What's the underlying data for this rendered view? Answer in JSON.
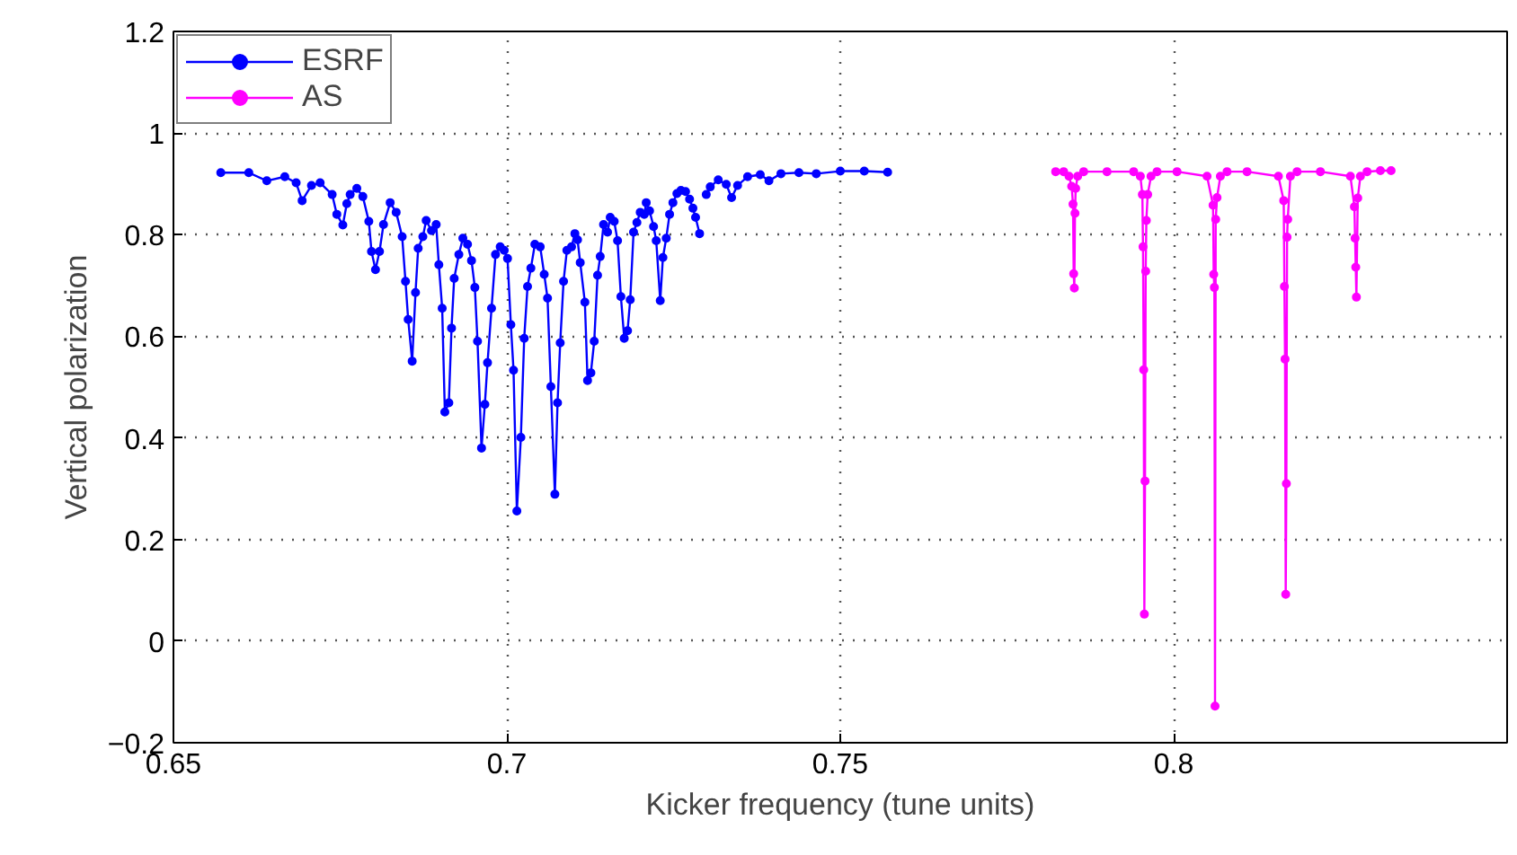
{
  "chart_data": {
    "type": "line",
    "xlabel": "Kicker frequency (tune units)",
    "ylabel": "Vertical polarization",
    "xlim": [
      0.65,
      0.85
    ],
    "ylim": [
      -0.2,
      1.2
    ],
    "xticks": [
      0.65,
      0.7,
      0.75,
      0.8
    ],
    "yticks": [
      {
        "value": -0.2,
        "label": "−0.2"
      },
      0,
      0.2,
      0.4,
      0.6,
      0.8,
      1,
      1.2
    ],
    "grid": true,
    "legend": "top left",
    "marker": "circle",
    "line_style": "solid",
    "series": [
      {
        "name": "ESRF",
        "color": "#0000ff",
        "x": [
          0.6571,
          0.6613,
          0.664,
          0.6667,
          0.6684,
          0.6693,
          0.6707,
          0.672,
          0.6738,
          0.6745,
          0.6754,
          0.676,
          0.6765,
          0.6775,
          0.6784,
          0.6793,
          0.6797,
          0.6803,
          0.6809,
          0.6815,
          0.6825,
          0.6834,
          0.6843,
          0.6848,
          0.6852,
          0.6858,
          0.6863,
          0.6867,
          0.6874,
          0.6879,
          0.6887,
          0.6894,
          0.6898,
          0.6903,
          0.6907,
          0.6913,
          0.6917,
          0.6921,
          0.6928,
          0.6934,
          0.6941,
          0.6947,
          0.6952,
          0.6956,
          0.6962,
          0.6967,
          0.6971,
          0.6977,
          0.6983,
          0.699,
          0.6996,
          0.7001,
          0.7006,
          0.701,
          0.7015,
          0.7021,
          0.7026,
          0.7031,
          0.7036,
          0.7042,
          0.705,
          0.7056,
          0.7061,
          0.7066,
          0.7072,
          0.7076,
          0.708,
          0.7085,
          0.709,
          0.7097,
          0.7102,
          0.7106,
          0.711,
          0.7117,
          0.7121,
          0.7126,
          0.7131,
          0.7136,
          0.714,
          0.7145,
          0.7151,
          0.7155,
          0.7161,
          0.7166,
          0.7171,
          0.7176,
          0.7181,
          0.7185,
          0.719,
          0.7195,
          0.72,
          0.7206,
          0.7209,
          0.7214,
          0.722,
          0.7224,
          0.723,
          0.7234,
          0.7239,
          0.7244,
          0.7249,
          0.7255,
          0.7261,
          0.7268,
          0.7274,
          0.7279,
          0.7283,
          0.7289,
          0.7294,
          0.7299,
          0.7305,
          0.7317,
          0.7329,
          0.7337,
          0.7346,
          0.7361,
          0.738,
          0.7393,
          0.7411,
          0.7438,
          0.7464,
          0.75,
          0.7536,
          0.7571
        ],
        "values": [
          0.922,
          0.922,
          0.906,
          0.914,
          0.902,
          0.867,
          0.897,
          0.902,
          0.879,
          0.84,
          0.819,
          0.861,
          0.879,
          0.891,
          0.875,
          0.826,
          0.767,
          0.731,
          0.767,
          0.82,
          0.863,
          0.844,
          0.796,
          0.708,
          0.633,
          0.551,
          0.686,
          0.773,
          0.796,
          0.828,
          0.808,
          0.82,
          0.741,
          0.655,
          0.451,
          0.469,
          0.616,
          0.714,
          0.761,
          0.793,
          0.781,
          0.749,
          0.696,
          0.59,
          0.38,
          0.466,
          0.548,
          0.655,
          0.761,
          0.776,
          0.769,
          0.753,
          0.623,
          0.533,
          0.256,
          0.401,
          0.596,
          0.698,
          0.734,
          0.781,
          0.776,
          0.722,
          0.675,
          0.501,
          0.289,
          0.469,
          0.587,
          0.708,
          0.769,
          0.776,
          0.802,
          0.79,
          0.745,
          0.667,
          0.513,
          0.528,
          0.59,
          0.72,
          0.757,
          0.82,
          0.805,
          0.834,
          0.826,
          0.788,
          0.678,
          0.596,
          0.611,
          0.672,
          0.805,
          0.824,
          0.844,
          0.84,
          0.863,
          0.847,
          0.816,
          0.788,
          0.67,
          0.755,
          0.793,
          0.84,
          0.863,
          0.881,
          0.887,
          0.885,
          0.87,
          0.852,
          0.834,
          0.802,
          null,
          0.879,
          0.894,
          0.908,
          0.899,
          0.873,
          0.897,
          0.914,
          0.918,
          0.906,
          0.92,
          0.922,
          0.92,
          0.925,
          0.925,
          0.923
        ]
      },
      {
        "name": "AS",
        "color": "#ff00ff",
        "x": [
          0.7823,
          0.7835,
          0.7843,
          0.7847,
          0.7849,
          0.785,
          0.7851,
          0.7852,
          0.7853,
          0.7856,
          0.7865,
          0.79,
          0.794,
          0.795,
          0.7953,
          0.7954,
          0.7955,
          0.7956,
          0.7957,
          0.7958,
          0.7959,
          0.7961,
          0.7966,
          0.7975,
          0.8005,
          0.805,
          0.8059,
          0.806,
          0.8061,
          0.8062,
          0.8063,
          0.8065,
          0.807,
          0.808,
          0.811,
          0.8157,
          0.8165,
          0.8166,
          0.8167,
          0.8168,
          0.8169,
          0.817,
          0.8171,
          0.8175,
          0.8185,
          0.822,
          0.8265,
          0.8271,
          0.8272,
          0.8273,
          0.8274,
          0.8276,
          0.828,
          0.829,
          0.831,
          0.8326
        ],
        "values": [
          0.924,
          0.924,
          0.915,
          0.895,
          0.86,
          0.723,
          0.695,
          0.842,
          0.891,
          0.915,
          0.924,
          0.924,
          0.924,
          0.915,
          0.879,
          0.776,
          0.534,
          0.053,
          0.315,
          0.728,
          0.828,
          0.879,
          0.915,
          0.924,
          0.924,
          0.915,
          0.858,
          0.722,
          0.696,
          -0.128,
          0.83,
          0.873,
          0.915,
          0.924,
          0.924,
          0.915,
          0.867,
          0.698,
          0.555,
          0.092,
          0.31,
          0.795,
          0.83,
          0.915,
          0.924,
          0.924,
          0.915,
          0.855,
          0.793,
          0.736,
          0.677,
          0.872,
          0.915,
          0.924,
          0.926,
          0.926
        ]
      }
    ]
  }
}
